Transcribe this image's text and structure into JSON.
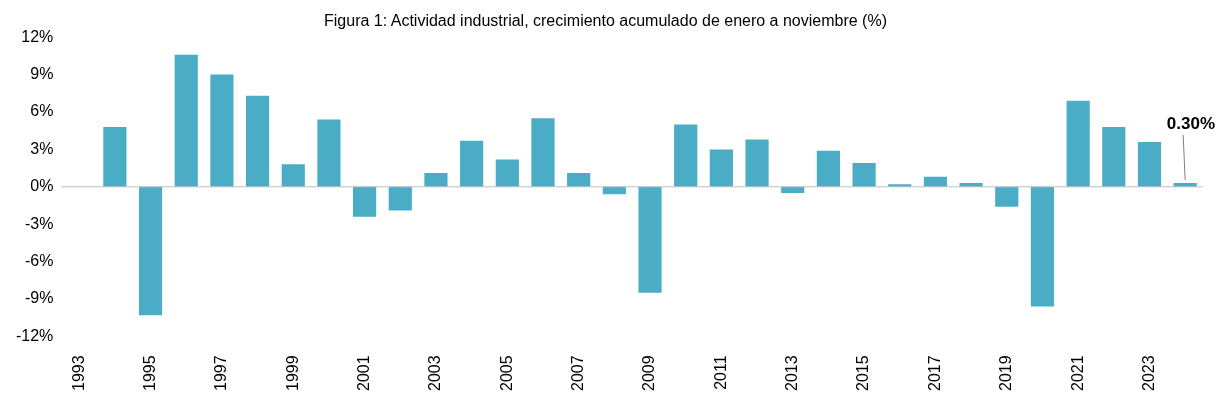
{
  "chart_data": {
    "type": "bar",
    "title": "Figura 1: Actividad industrial, crecimiento acumulado de enero a noviembre (%)",
    "categories": [
      "1993",
      null,
      "1995",
      null,
      "1997",
      null,
      "1999",
      null,
      "2001",
      null,
      "2003",
      null,
      "2005",
      null,
      "2007",
      null,
      "2009",
      null,
      "2011",
      null,
      "2013",
      null,
      "2015",
      null,
      "2017",
      null,
      "2019",
      null,
      "2021",
      null,
      "2023",
      null
    ],
    "values": [
      null,
      4.8,
      -10.3,
      10.6,
      9.0,
      7.3,
      1.8,
      5.4,
      -2.4,
      -1.9,
      1.1,
      3.7,
      2.2,
      5.5,
      1.1,
      -0.6,
      -8.5,
      5.0,
      3.0,
      3.8,
      -0.5,
      2.9,
      1.9,
      0.2,
      0.8,
      0.3,
      -1.6,
      -9.6,
      6.9,
      4.8,
      3.6,
      0.3
    ],
    "value_labels": [
      null,
      null,
      null,
      null,
      null,
      null,
      null,
      null,
      null,
      null,
      null,
      null,
      null,
      null,
      null,
      null,
      null,
      null,
      null,
      null,
      null,
      null,
      null,
      null,
      null,
      null,
      null,
      null,
      null,
      null,
      null,
      "0.30%"
    ],
    "color": "#4bacc6",
    "ylim": [
      -12,
      12
    ],
    "yticks": [
      {
        "value": -12,
        "label": "-12%"
      },
      {
        "value": -9,
        "label": "-9%"
      },
      {
        "value": -6,
        "label": "-6%"
      },
      {
        "value": -3,
        "label": "-3%"
      },
      {
        "value": 0,
        "label": "0%"
      },
      {
        "value": 3,
        "label": "3%"
      },
      {
        "value": 6,
        "label": "6%"
      },
      {
        "value": 9,
        "label": "9%"
      },
      {
        "value": 12,
        "label": "12%"
      }
    ],
    "ref_lines": [
      {
        "axis": "y",
        "value": 0,
        "color": "#bfbfbf"
      }
    ],
    "grid": false,
    "legend": false
  }
}
